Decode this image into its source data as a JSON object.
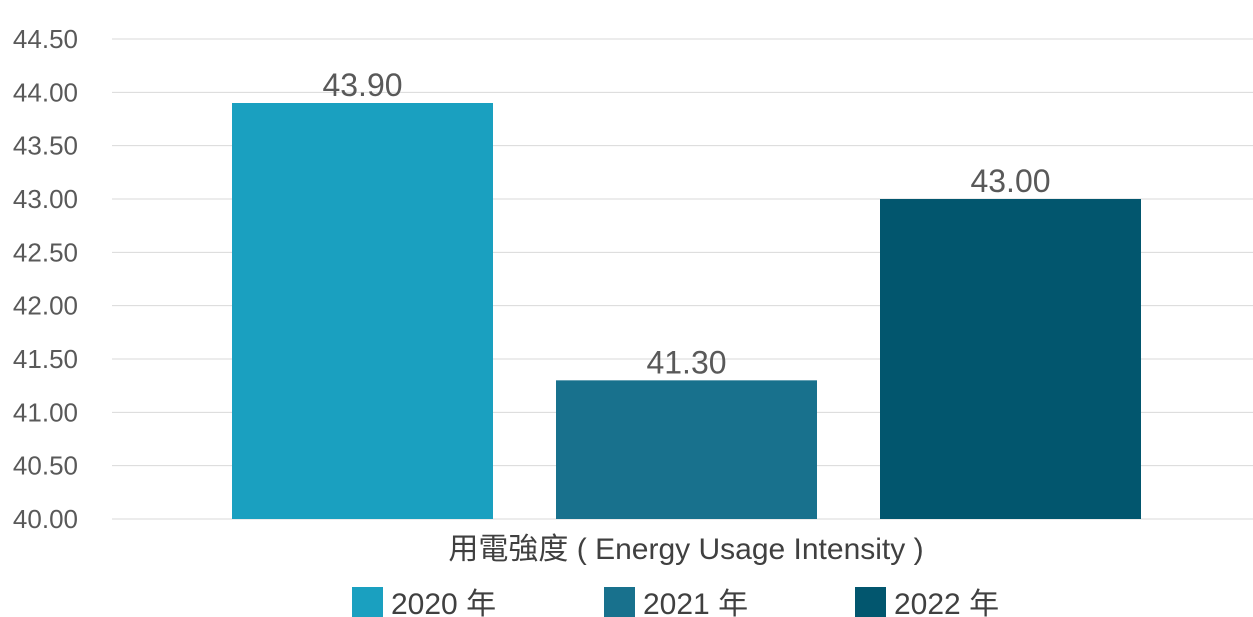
{
  "chart_data": {
    "type": "bar",
    "categories": [
      "用電強度 ( Energy Usage Intensity )"
    ],
    "series": [
      {
        "name": "2020 年",
        "values": [
          43.9
        ],
        "color": "#1aa0c0"
      },
      {
        "name": "2021 年",
        "values": [
          41.3
        ],
        "color": "#18718d"
      },
      {
        "name": "2022 年",
        "values": [
          43.0
        ],
        "color": "#02566e"
      }
    ],
    "data_labels": [
      "43.90",
      "41.30",
      "43.00"
    ],
    "ylim": [
      40.0,
      44.5
    ],
    "yticks": [
      "40.00",
      "40.50",
      "41.00",
      "41.50",
      "42.00",
      "42.50",
      "43.00",
      "43.50",
      "44.00",
      "44.50"
    ],
    "title": "",
    "xlabel": "",
    "ylabel": "",
    "grid": true,
    "legend_position": "bottom"
  }
}
